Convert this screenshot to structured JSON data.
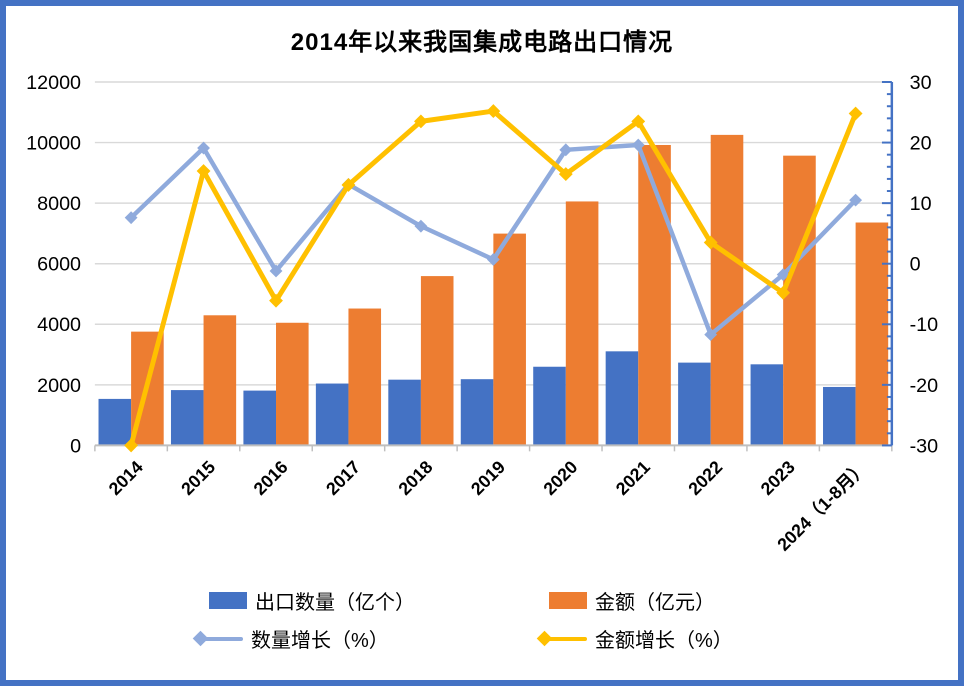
{
  "title": "2014年以来我国集成电路出口情况",
  "frame": {
    "border_color": "#4472C4",
    "background": "#FFFFFF"
  },
  "chart_data": {
    "type": "combo-bar-line",
    "title": "2014年以来我国集成电路出口情况",
    "categories": [
      "2014",
      "2015",
      "2016",
      "2017",
      "2018",
      "2019",
      "2020",
      "2021",
      "2022",
      "2023",
      "2024（1-8月）"
    ],
    "series": [
      {
        "name": "出口数量（亿个）",
        "type": "bar",
        "axis": "left",
        "color": "#4472C4",
        "values": [
          1536,
          1827,
          1810,
          2043,
          2171,
          2187,
          2598,
          3107,
          2734,
          2678,
          1930
        ]
      },
      {
        "name": "金额（亿元）",
        "type": "bar",
        "axis": "left",
        "color": "#ED7D31",
        "values": [
          3757,
          4297,
          4050,
          4520,
          5591,
          6994,
          8056,
          9920,
          10254,
          9568,
          7360
        ]
      },
      {
        "name": "数量增长（%）",
        "type": "line",
        "axis": "right",
        "color": "#8FAADC",
        "marker": "diamond",
        "values": [
          7.6,
          19.1,
          -1.2,
          13.1,
          6.2,
          0.7,
          18.8,
          19.6,
          -11.7,
          -1.8,
          10.5
        ]
      },
      {
        "name": "金额增长（%）",
        "type": "line",
        "axis": "right",
        "color": "#FFC000",
        "marker": "diamond",
        "values": [
          -30,
          15.3,
          -6.1,
          13.0,
          23.5,
          25.2,
          14.8,
          23.5,
          3.5,
          -4.8,
          24.8
        ]
      }
    ],
    "left_axis": {
      "min": 0,
      "max": 12000,
      "step": 2000
    },
    "right_axis": {
      "min": -30,
      "max": 30,
      "step": 10,
      "minor_step": 2,
      "line_color": "#4472C4",
      "negative_label_color": "#FF0000"
    },
    "gridline_color": "#D9D9D9",
    "baseline_color": "#BFBFBF",
    "legend_position": "bottom",
    "grid": true
  }
}
